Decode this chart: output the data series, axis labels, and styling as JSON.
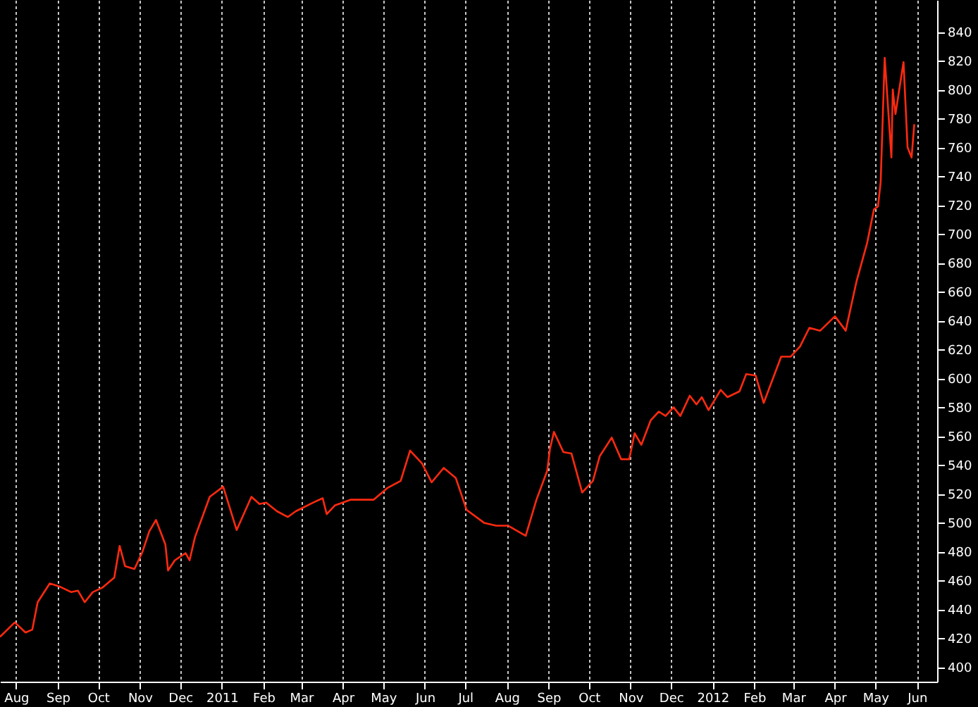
{
  "chart_data": {
    "type": "line",
    "grid": "x",
    "marker": "none",
    "line_style": "solid",
    "xlim": [
      "2010-07-20",
      "2012-06-16"
    ],
    "xticks": [
      {
        "value": "2010-08-01",
        "label": "Aug"
      },
      {
        "value": "2010-09-01",
        "label": "Sep"
      },
      {
        "value": "2010-10-01",
        "label": "Oct"
      },
      {
        "value": "2010-11-01",
        "label": "Nov"
      },
      {
        "value": "2010-12-01",
        "label": "Dec"
      },
      {
        "value": "2011-01-01",
        "label": "2011"
      },
      {
        "value": "2011-02-01",
        "label": "Feb"
      },
      {
        "value": "2011-03-01",
        "label": "Mar"
      },
      {
        "value": "2011-04-01",
        "label": "Apr"
      },
      {
        "value": "2011-05-01",
        "label": "May"
      },
      {
        "value": "2011-06-01",
        "label": "Jun"
      },
      {
        "value": "2011-07-01",
        "label": "Jul"
      },
      {
        "value": "2011-08-01",
        "label": "Aug"
      },
      {
        "value": "2011-09-01",
        "label": "Sep"
      },
      {
        "value": "2011-10-01",
        "label": "Oct"
      },
      {
        "value": "2011-11-01",
        "label": "Nov"
      },
      {
        "value": "2011-12-01",
        "label": "Dec"
      },
      {
        "value": "2012-01-01",
        "label": "2012"
      },
      {
        "value": "2012-02-01",
        "label": "Feb"
      },
      {
        "value": "2012-03-01",
        "label": "Mar"
      },
      {
        "value": "2012-04-01",
        "label": "Apr"
      },
      {
        "value": "2012-05-01",
        "label": "May"
      },
      {
        "value": "2012-06-01",
        "label": "Jun"
      }
    ],
    "ylim": [
      390,
      862
    ],
    "yticks": [
      400,
      420,
      440,
      460,
      480,
      500,
      520,
      540,
      560,
      580,
      600,
      620,
      640,
      660,
      680,
      700,
      720,
      740,
      760,
      780,
      800,
      820,
      840
    ],
    "x": [
      "2010-07-20",
      "2010-07-31",
      "2010-08-08",
      "2010-08-13",
      "2010-08-17",
      "2010-08-26",
      "2010-09-02",
      "2010-09-11",
      "2010-09-16",
      "2010-09-21",
      "2010-09-27",
      "2010-10-04",
      "2010-10-13",
      "2010-10-17",
      "2010-10-21",
      "2010-10-28",
      "2010-11-03",
      "2010-11-08",
      "2010-11-13",
      "2010-11-20",
      "2010-11-22",
      "2010-11-27",
      "2010-12-05",
      "2010-12-08",
      "2010-12-12",
      "2010-12-23",
      "2011-01-02",
      "2011-01-12",
      "2011-01-23",
      "2011-01-29",
      "2011-02-03",
      "2011-02-11",
      "2011-02-19",
      "2011-02-25",
      "2011-03-10",
      "2011-03-17",
      "2011-03-20",
      "2011-03-26",
      "2011-04-07",
      "2011-04-24",
      "2011-05-04",
      "2011-05-14",
      "2011-05-21",
      "2011-05-30",
      "2011-06-06",
      "2011-06-15",
      "2011-06-24",
      "2011-07-02",
      "2011-07-15",
      "2011-07-24",
      "2011-08-02",
      "2011-08-15",
      "2011-08-23",
      "2011-08-31",
      "2011-09-02",
      "2011-09-05",
      "2011-09-12",
      "2011-09-18",
      "2011-09-26",
      "2011-10-04",
      "2011-10-09",
      "2011-10-18",
      "2011-10-25",
      "2011-10-31",
      "2011-11-04",
      "2011-11-09",
      "2011-11-16",
      "2011-11-22",
      "2011-11-27",
      "2011-12-03",
      "2011-12-08",
      "2011-12-15",
      "2011-12-20",
      "2011-12-24",
      "2011-12-29",
      "2012-01-07",
      "2012-01-12",
      "2012-01-21",
      "2012-01-26",
      "2012-02-02",
      "2012-02-08",
      "2012-02-21",
      "2012-02-28",
      "2012-03-06",
      "2012-03-13",
      "2012-03-21",
      "2012-04-01",
      "2012-04-09",
      "2012-04-17",
      "2012-04-25",
      "2012-04-30",
      "2012-05-03",
      "2012-05-05",
      "2012-05-08",
      "2012-05-13",
      "2012-05-14",
      "2012-05-16",
      "2012-05-22",
      "2012-05-25",
      "2012-05-28",
      "2012-05-30"
    ],
    "series": [
      {
        "color": "#ff2a10",
        "values": [
          421,
          431,
          424,
          426,
          445,
          458,
          456,
          452,
          453,
          445,
          452,
          455,
          462,
          484,
          470,
          468,
          480,
          494,
          502,
          485,
          467,
          474,
          479,
          474,
          490,
          518,
          525,
          495,
          518,
          513,
          514,
          508,
          504,
          508,
          514,
          517,
          506,
          512,
          516,
          516,
          524,
          529,
          550,
          541,
          528,
          538,
          531,
          509,
          500,
          498,
          498,
          491,
          516,
          536,
          551,
          563,
          549,
          548,
          521,
          529,
          546,
          559,
          544,
          544,
          562,
          554,
          571,
          577,
          574,
          580,
          574,
          588,
          582,
          587,
          578,
          592,
          587,
          591,
          603,
          602,
          583,
          615,
          615,
          622,
          635,
          633,
          643,
          633,
          667,
          694,
          717,
          719,
          736,
          822,
          753,
          800,
          783,
          819,
          760,
          753,
          776
        ]
      }
    ]
  }
}
